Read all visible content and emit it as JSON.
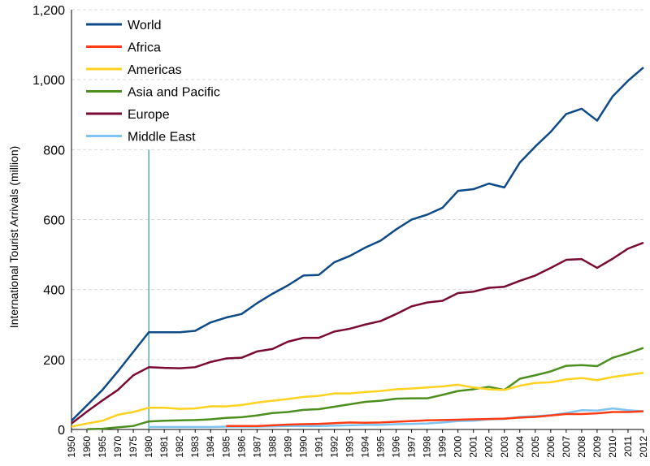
{
  "chart_data": {
    "type": "line",
    "title": "",
    "xlabel": "",
    "ylabel": "International Tourist Arrivals (million)",
    "ylim": [
      0,
      1200
    ],
    "yticks": [
      0,
      200,
      400,
      600,
      800,
      1000,
      1200
    ],
    "ytick_labels": [
      "0",
      "200",
      "400",
      "600",
      "800",
      "1,000",
      "1,200"
    ],
    "categories": [
      "1950",
      "1960",
      "1965",
      "1970",
      "1975",
      "1980",
      "1981",
      "1982",
      "1983",
      "1984",
      "1985",
      "1986",
      "1987",
      "1988",
      "1989",
      "1990",
      "1991",
      "1992",
      "1993",
      "1994",
      "1995",
      "1996",
      "1997",
      "1998",
      "1999",
      "2000",
      "2001",
      "2002",
      "2003",
      "2004",
      "2005",
      "2006",
      "2007",
      "2008",
      "2009",
      "2010",
      "2011",
      "2012"
    ],
    "marker_category": "1980",
    "legend_position": "top-left",
    "series": [
      {
        "name": "World",
        "color": "#0d4a87",
        "values": [
          25,
          69,
          113,
          166,
          222,
          278,
          278,
          278,
          282,
          306,
          320,
          330,
          361,
          388,
          412,
          440,
          442,
          478,
          496,
          520,
          540,
          572,
          600,
          614,
          634,
          682,
          687,
          703,
          692,
          763,
          809,
          851,
          902,
          917,
          883,
          952,
          997,
          1035
        ]
      },
      {
        "name": "Africa",
        "color": "#ff3b14",
        "values": [
          null,
          null,
          null,
          null,
          null,
          null,
          null,
          null,
          null,
          null,
          10,
          10,
          10,
          12,
          14,
          15,
          16,
          18,
          20,
          19,
          20,
          22,
          24,
          26,
          27,
          28,
          29,
          30,
          31,
          34,
          36,
          40,
          44,
          44,
          46,
          50,
          50,
          52
        ]
      },
      {
        "name": "Americas",
        "color": "#ffd21f",
        "values": [
          8,
          17,
          25,
          42,
          50,
          62,
          62,
          59,
          60,
          66,
          66,
          70,
          77,
          82,
          87,
          93,
          96,
          103,
          103,
          107,
          110,
          115,
          117,
          120,
          123,
          128,
          120,
          115,
          113,
          125,
          133,
          135,
          143,
          147,
          141,
          150,
          156,
          162
        ]
      },
      {
        "name": "Asia and Pacific",
        "color": "#4d8f1f",
        "values": [
          null,
          1,
          2,
          6,
          10,
          23,
          25,
          26,
          27,
          29,
          33,
          35,
          40,
          47,
          50,
          56,
          58,
          65,
          72,
          79,
          82,
          88,
          89,
          89,
          99,
          110,
          115,
          122,
          113,
          145,
          155,
          166,
          182,
          184,
          181,
          205,
          218,
          233
        ]
      },
      {
        "name": "Europe",
        "color": "#7a0a33",
        "values": [
          17,
          51,
          83,
          113,
          155,
          178,
          176,
          175,
          178,
          193,
          203,
          205,
          223,
          230,
          251,
          262,
          262,
          280,
          288,
          300,
          310,
          330,
          352,
          363,
          368,
          390,
          394,
          405,
          408,
          425,
          440,
          462,
          485,
          487,
          462,
          488,
          517,
          534
        ]
      },
      {
        "name": "Middle East",
        "color": "#7fc3f0",
        "values": [
          null,
          null,
          null,
          null,
          null,
          7,
          7,
          7,
          7,
          7,
          8,
          8,
          8,
          9,
          10,
          10,
          10,
          11,
          12,
          13,
          13,
          15,
          16,
          17,
          20,
          24,
          25,
          29,
          30,
          36,
          38,
          41,
          47,
          55,
          54,
          60,
          55,
          52
        ]
      }
    ]
  }
}
